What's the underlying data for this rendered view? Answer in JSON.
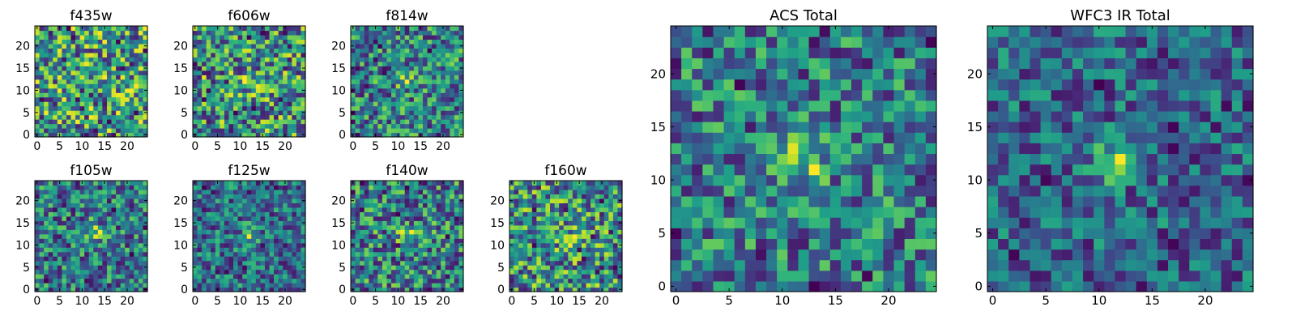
{
  "chart_data": [
    {
      "type": "heatmap",
      "title": "f435w",
      "xlim": [
        0,
        24
      ],
      "ylim": [
        0,
        24
      ],
      "xticks": [
        0,
        5,
        10,
        15,
        20
      ],
      "yticks": [
        0,
        5,
        10,
        15,
        20
      ],
      "grid_size": 25,
      "colormap": "viridis",
      "seed": 11,
      "blob": {
        "cx": 12,
        "cy": 12,
        "amplitude": 0.05
      }
    },
    {
      "type": "heatmap",
      "title": "f606w",
      "xlim": [
        0,
        24
      ],
      "ylim": [
        0,
        24
      ],
      "xticks": [
        0,
        5,
        10,
        15,
        20
      ],
      "yticks": [
        0,
        5,
        10,
        15,
        20
      ],
      "grid_size": 25,
      "colormap": "viridis",
      "seed": 23,
      "blob": {
        "cx": 12,
        "cy": 12,
        "amplitude": 0.3
      }
    },
    {
      "type": "heatmap",
      "title": "f814w",
      "xlim": [
        0,
        24
      ],
      "ylim": [
        0,
        24
      ],
      "xticks": [
        0,
        5,
        10,
        15,
        20
      ],
      "yticks": [
        0,
        5,
        10,
        15,
        20
      ],
      "grid_size": 25,
      "colormap": "viridis",
      "seed": 37,
      "blob": {
        "cx": 12,
        "cy": 12,
        "amplitude": 0.35
      }
    },
    {
      "type": "heatmap",
      "title": "f105w",
      "xlim": [
        0,
        24
      ],
      "ylim": [
        0,
        24
      ],
      "xticks": [
        0,
        5,
        10,
        15,
        20
      ],
      "yticks": [
        0,
        5,
        10,
        15,
        20
      ],
      "grid_size": 25,
      "colormap": "viridis",
      "seed": 41,
      "blob": {
        "cx": 13,
        "cy": 13,
        "amplitude": 0.5
      }
    },
    {
      "type": "heatmap",
      "title": "f125w",
      "xlim": [
        0,
        24
      ],
      "ylim": [
        0,
        24
      ],
      "xticks": [
        0,
        5,
        10,
        15,
        20
      ],
      "yticks": [
        0,
        5,
        10,
        15,
        20
      ],
      "grid_size": 25,
      "colormap": "viridis",
      "seed": 53,
      "blob": {
        "cx": 12,
        "cy": 12,
        "amplitude": 0.45
      }
    },
    {
      "type": "heatmap",
      "title": "f140w",
      "xlim": [
        0,
        24
      ],
      "ylim": [
        0,
        24
      ],
      "xticks": [
        0,
        5,
        10,
        15,
        20
      ],
      "yticks": [
        0,
        5,
        10,
        15,
        20
      ],
      "grid_size": 25,
      "colormap": "viridis",
      "seed": 67,
      "blob": {
        "cx": 12,
        "cy": 12,
        "amplitude": 0.35
      }
    },
    {
      "type": "heatmap",
      "title": "f160w",
      "xlim": [
        0,
        24
      ],
      "ylim": [
        0,
        24
      ],
      "xticks": [
        0,
        5,
        10,
        15,
        20
      ],
      "yticks": [
        0,
        5,
        10,
        15,
        20
      ],
      "grid_size": 25,
      "colormap": "viridis",
      "seed": 79,
      "blob": {
        "cx": 12,
        "cy": 12,
        "amplitude": 0.3
      }
    },
    {
      "type": "heatmap",
      "title": "ACS Total",
      "xlim": [
        0,
        24
      ],
      "ylim": [
        0,
        24
      ],
      "xticks": [
        0,
        5,
        10,
        15,
        20
      ],
      "yticks": [
        0,
        5,
        10,
        15,
        20
      ],
      "grid_size": 25,
      "colormap": "viridis",
      "seed": 97,
      "blob": {
        "cx": 12,
        "cy": 12,
        "amplitude": 0.55
      }
    },
    {
      "type": "heatmap",
      "title": "WFC3 IR Total",
      "xlim": [
        0,
        24
      ],
      "ylim": [
        0,
        24
      ],
      "xticks": [
        0,
        5,
        10,
        15,
        20
      ],
      "yticks": [
        0,
        5,
        10,
        15,
        20
      ],
      "grid_size": 25,
      "colormap": "viridis",
      "seed": 131,
      "blob": {
        "cx": 12,
        "cy": 12,
        "amplitude": 0.7
      }
    }
  ]
}
